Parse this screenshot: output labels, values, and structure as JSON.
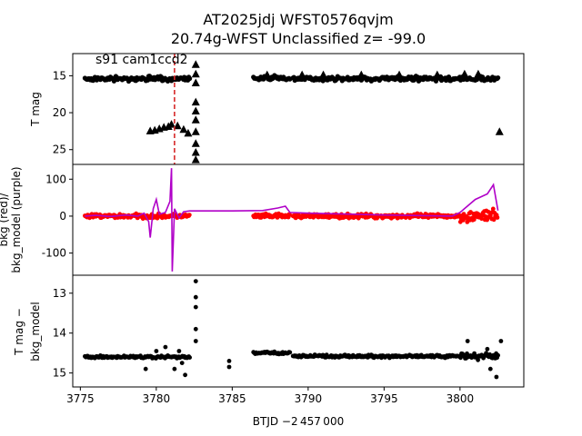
{
  "figure": {
    "title_line1": "AT2025jdj  WFST0576qvjm",
    "title_line2": "20.74g-WFST Unclassified z= -99.0"
  },
  "chart_data": [
    {
      "type": "scatter",
      "panel": "top",
      "ylabel": "T mag",
      "y_inverted": true,
      "xlim": [
        3774.5,
        3804.2
      ],
      "ylim": [
        27.0,
        12.0
      ],
      "yticks": [
        15,
        20,
        25
      ],
      "annotation": "s91 cam1ccd2",
      "vline": {
        "x": 3781.2,
        "color": "#d62728",
        "style": "dashed"
      },
      "series": [
        {
          "marker": "circle",
          "color": "#000000",
          "segments": [
            [
              3775.3,
              3782.2,
              15.4
            ],
            [
              3786.4,
              3788.8,
              15.3
            ],
            [
              3789.0,
              3802.5,
              15.4
            ]
          ]
        },
        {
          "marker": "triangle",
          "color": "#000000",
          "points": [
            [
              3779.6,
              22.5
            ],
            [
              3779.9,
              22.4
            ],
            [
              3780.2,
              22.2
            ],
            [
              3780.5,
              22.0
            ],
            [
              3780.8,
              21.9
            ],
            [
              3781.0,
              21.6
            ],
            [
              3781.4,
              21.8
            ],
            [
              3781.8,
              22.3
            ],
            [
              3782.1,
              22.8
            ],
            [
              3782.6,
              13.5
            ],
            [
              3782.6,
              14.8
            ],
            [
              3782.6,
              16.0
            ],
            [
              3782.6,
              18.6
            ],
            [
              3782.6,
              19.8
            ],
            [
              3782.6,
              21.0
            ],
            [
              3782.6,
              22.6
            ],
            [
              3782.6,
              24.2
            ],
            [
              3782.6,
              25.4
            ],
            [
              3782.6,
              26.4
            ],
            [
              3787.3,
              14.9
            ],
            [
              3789.6,
              14.9
            ],
            [
              3791.0,
              14.9
            ],
            [
              3793.5,
              14.9
            ],
            [
              3796.0,
              14.9
            ],
            [
              3798.5,
              14.9
            ],
            [
              3800.3,
              14.8
            ],
            [
              3801.2,
              14.8
            ],
            [
              3802.6,
              22.6
            ]
          ]
        }
      ],
      "xticks": []
    },
    {
      "type": "line",
      "panel": "middle",
      "ylabel_line1": "bkg (red)/",
      "ylabel_line2": "bkg_model (purple)",
      "xlim": [
        3774.5,
        3804.2
      ],
      "ylim": [
        -160,
        140
      ],
      "yticks": [
        100,
        0,
        -100
      ],
      "series": [
        {
          "name": "bkg",
          "color": "#ff0000",
          "marker": "dot",
          "segments": [
            [
              3775.3,
              3782.2
            ],
            [
              3786.4,
              3788.8
            ],
            [
              3789.0,
              3802.5
            ]
          ]
        },
        {
          "name": "bkg_model",
          "color": "#b000c8",
          "points": [
            [
              3775.3,
              0
            ],
            [
              3776.0,
              2
            ],
            [
              3777.0,
              -1
            ],
            [
              3778.0,
              3
            ],
            [
              3778.8,
              0
            ],
            [
              3779.2,
              8
            ],
            [
              3779.5,
              -15
            ],
            [
              3779.6,
              -58
            ],
            [
              3779.8,
              20
            ],
            [
              3780.0,
              45
            ],
            [
              3780.2,
              5
            ],
            [
              3780.6,
              10
            ],
            [
              3780.9,
              40
            ],
            [
              3781.0,
              130
            ],
            [
              3781.05,
              -150
            ],
            [
              3781.2,
              20
            ],
            [
              3781.5,
              -5
            ],
            [
              3781.8,
              12
            ],
            [
              3782.2,
              14
            ],
            [
              3785.0,
              14
            ],
            [
              3787.0,
              15
            ],
            [
              3788.0,
              22
            ],
            [
              3788.5,
              27
            ],
            [
              3788.8,
              10
            ],
            [
              3790.0,
              8
            ],
            [
              3795.0,
              3
            ],
            [
              3799.5,
              0
            ],
            [
              3800.0,
              10
            ],
            [
              3801.0,
              45
            ],
            [
              3801.8,
              60
            ],
            [
              3802.2,
              85
            ],
            [
              3802.5,
              15
            ]
          ]
        }
      ],
      "xticks": []
    },
    {
      "type": "scatter",
      "panel": "bottom",
      "ylabel_line1": "T mag −",
      "ylabel_line2": "bkg_model",
      "y_inverted": true,
      "xlim": [
        3774.5,
        3804.2
      ],
      "ylim": [
        15.35,
        12.55
      ],
      "yticks": [
        13,
        14,
        15
      ],
      "xlabel": "BTJD −2 457 000",
      "xticks": [
        3775,
        3780,
        3785,
        3790,
        3795,
        3800
      ],
      "series": [
        {
          "marker": "circle",
          "color": "#000000",
          "bands": [
            [
              3775.3,
              3782.2,
              14.6
            ],
            [
              3786.4,
              3788.8,
              14.5
            ],
            [
              3789.0,
              3802.5,
              14.58
            ]
          ],
          "points": [
            [
              3779.3,
              14.9
            ],
            [
              3780.0,
              14.45
            ],
            [
              3780.6,
              14.35
            ],
            [
              3781.2,
              14.9
            ],
            [
              3781.5,
              14.45
            ],
            [
              3781.7,
              14.75
            ],
            [
              3781.9,
              15.05
            ],
            [
              3782.6,
              12.7
            ],
            [
              3782.6,
              13.1
            ],
            [
              3782.6,
              13.35
            ],
            [
              3782.6,
              13.9
            ],
            [
              3782.6,
              14.2
            ],
            [
              3784.8,
              14.7
            ],
            [
              3784.8,
              14.85
            ],
            [
              3800.5,
              14.2
            ],
            [
              3801.8,
              14.4
            ],
            [
              3802.0,
              14.9
            ],
            [
              3802.4,
              15.1
            ],
            [
              3802.7,
              14.2
            ]
          ]
        }
      ]
    }
  ]
}
